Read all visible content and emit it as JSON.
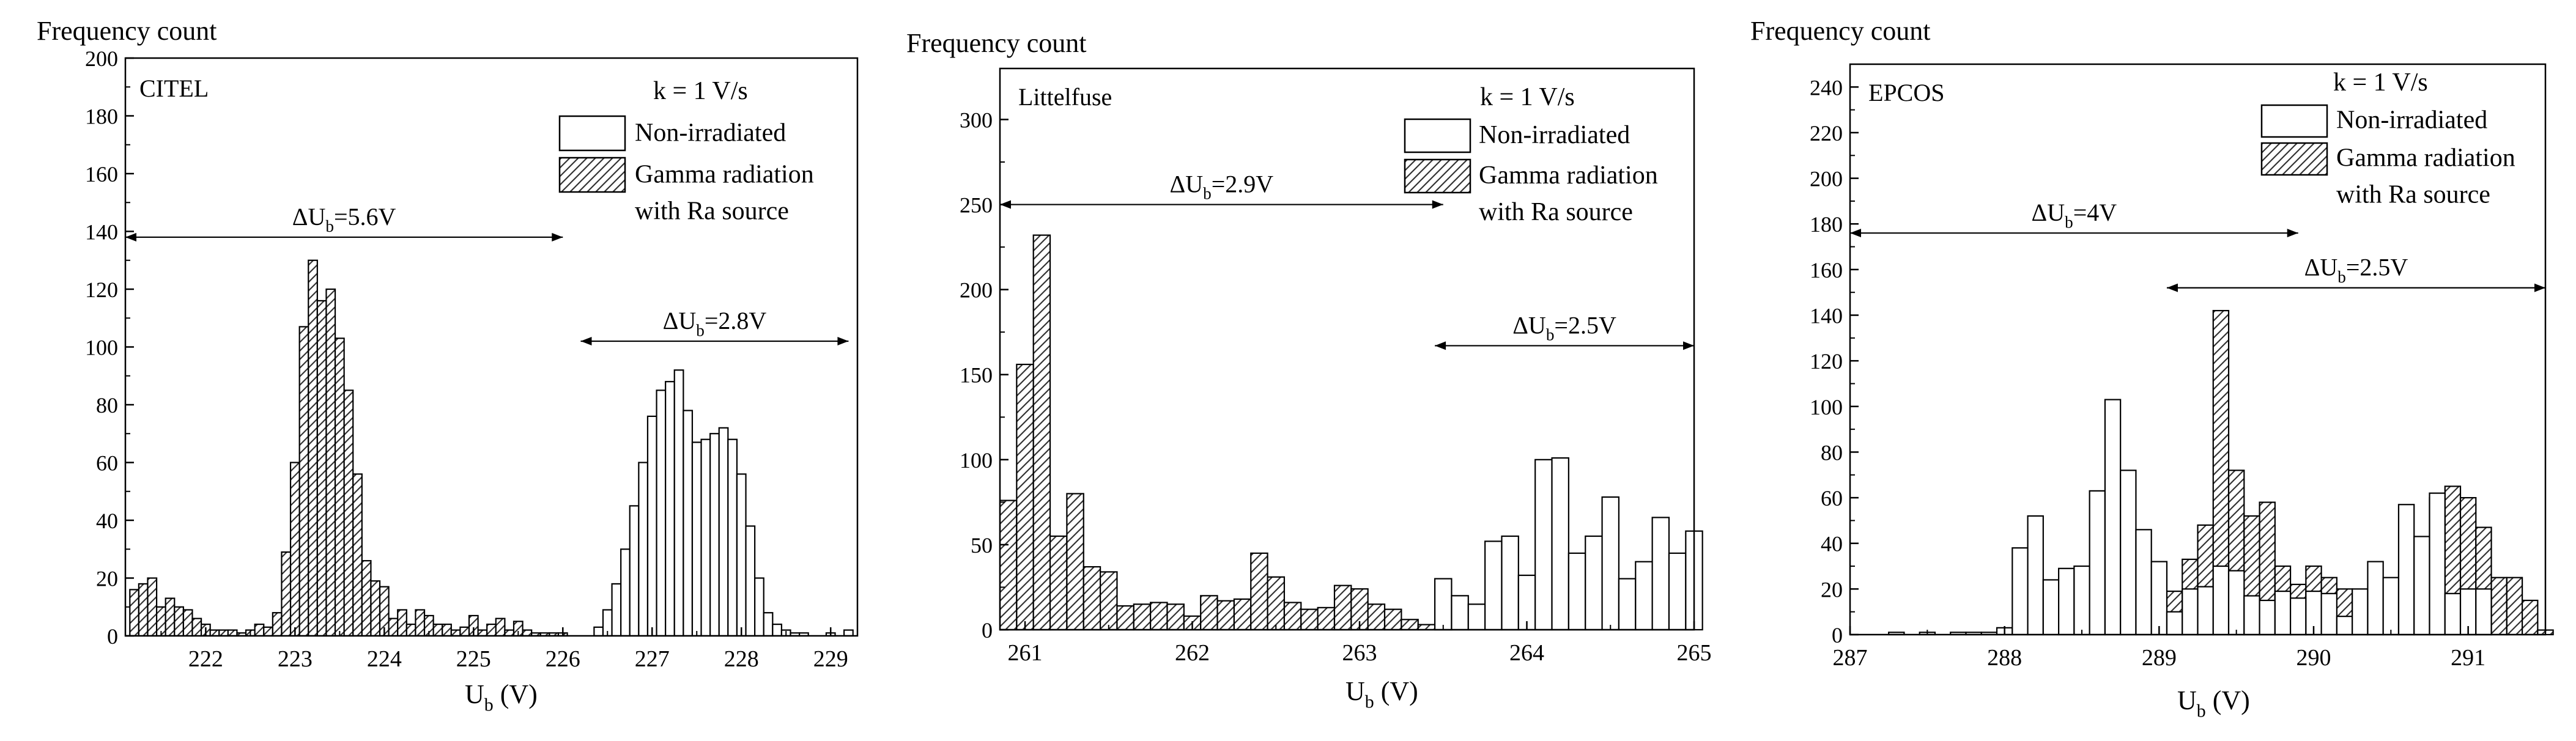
{
  "chart_data": [
    {
      "type": "bar",
      "panel_label": "CITEL",
      "ylabel": "Frequency count",
      "xlabel": "U",
      "xlabel_sub": "b",
      "xlabel_unit": "(V)",
      "xlim": [
        221.1,
        229.3
      ],
      "ylim": [
        0,
        200
      ],
      "xticks": [
        222,
        223,
        224,
        225,
        226,
        227,
        228,
        229
      ],
      "yticks": [
        0,
        20,
        40,
        60,
        80,
        100,
        120,
        140,
        160,
        180,
        200
      ],
      "bin_width": 0.1,
      "rate_label": "k = 1 V/s",
      "legend": [
        {
          "label": "Non-irradiated",
          "fill": "none"
        },
        {
          "label": "Gamma radiation",
          "label2": "with Ra source",
          "fill": "hatch"
        }
      ],
      "series": [
        {
          "name": "Non-irradiated",
          "fill": "none",
          "x": [
            226.4,
            226.5,
            226.6,
            226.7,
            226.8,
            226.9,
            227.0,
            227.1,
            227.2,
            227.3,
            227.4,
            227.5,
            227.6,
            227.7,
            227.8,
            227.9,
            228.0,
            228.1,
            228.2,
            228.3,
            228.4,
            228.5,
            228.6,
            228.7,
            228.8,
            228.9,
            229.0,
            229.1,
            229.2
          ],
          "values": [
            3,
            9,
            18,
            30,
            45,
            60,
            76,
            85,
            88,
            92,
            78,
            67,
            68,
            70,
            72,
            68,
            56,
            38,
            20,
            8,
            4,
            2,
            1,
            1,
            0,
            0,
            1,
            0,
            2
          ]
        },
        {
          "name": "Gamma radiation with Ra source",
          "fill": "hatch",
          "x": [
            221.2,
            221.3,
            221.4,
            221.5,
            221.6,
            221.7,
            221.8,
            221.9,
            222.0,
            222.1,
            222.2,
            222.3,
            222.4,
            222.5,
            222.6,
            222.7,
            222.8,
            222.9,
            223.0,
            223.1,
            223.2,
            223.3,
            223.4,
            223.5,
            223.6,
            223.7,
            223.8,
            223.9,
            224.0,
            224.1,
            224.2,
            224.3,
            224.4,
            224.5,
            224.6,
            224.7,
            224.8,
            224.9,
            225.0,
            225.1,
            225.2,
            225.3,
            225.4,
            225.5,
            225.6,
            225.7,
            225.8,
            225.9,
            226.0
          ],
          "values": [
            16,
            18,
            20,
            10,
            13,
            10,
            9,
            6,
            4,
            2,
            2,
            2,
            1,
            2,
            4,
            3,
            8,
            29,
            60,
            107,
            130,
            116,
            120,
            103,
            85,
            56,
            26,
            19,
            17,
            6,
            9,
            4,
            9,
            7,
            4,
            4,
            2,
            3,
            7,
            2,
            4,
            6,
            2,
            5,
            2,
            1,
            1,
            1,
            1
          ]
        }
      ],
      "annotations": [
        {
          "label": "ΔU",
          "sub": "b",
          "value": "=5.6V",
          "x_from": 221.1,
          "x_to": 226.0,
          "y": 138
        },
        {
          "label": "ΔU",
          "sub": "b",
          "value": "=2.8V",
          "x_from": 226.2,
          "x_to": 229.2,
          "y": 102
        }
      ]
    },
    {
      "type": "bar",
      "panel_label": "Littelfuse",
      "ylabel": "Frequency count",
      "xlabel": "U",
      "xlabel_sub": "b",
      "xlabel_unit": "(V)",
      "xlim": [
        260.85,
        265.0
      ],
      "ylim": [
        0,
        330
      ],
      "xticks": [
        261,
        262,
        263,
        264,
        265
      ],
      "yticks": [
        0,
        50,
        100,
        150,
        200,
        250,
        300
      ],
      "bin_width": 0.1,
      "rate_label": "k = 1 V/s",
      "legend": [
        {
          "label": "Non-irradiated",
          "fill": "none"
        },
        {
          "label": "Gamma radiation",
          "label2": "with Ra source",
          "fill": "hatch"
        }
      ],
      "series": [
        {
          "name": "Non-irradiated",
          "fill": "none",
          "x": [
            263.5,
            263.6,
            263.7,
            263.8,
            263.9,
            264.0,
            264.1,
            264.2,
            264.3,
            264.4,
            264.5,
            264.6,
            264.7,
            264.8,
            264.9,
            265.0
          ],
          "values": [
            30,
            20,
            15,
            52,
            55,
            32,
            100,
            101,
            45,
            55,
            78,
            30,
            40,
            66,
            45,
            58
          ]
        },
        {
          "name": "Gamma radiation with Ra source",
          "fill": "hatch",
          "x": [
            260.9,
            261.0,
            261.1,
            261.2,
            261.3,
            261.4,
            261.5,
            261.6,
            261.7,
            261.8,
            261.9,
            262.0,
            262.1,
            262.2,
            262.3,
            262.4,
            262.5,
            262.6,
            262.7,
            262.8,
            262.9,
            263.0,
            263.1,
            263.2,
            263.3,
            263.4,
            263.5
          ],
          "values": [
            76,
            156,
            232,
            55,
            80,
            37,
            34,
            14,
            15,
            16,
            15,
            8,
            20,
            17,
            18,
            45,
            31,
            16,
            12,
            13,
            26,
            24,
            15,
            12,
            6,
            3,
            4
          ]
        }
      ],
      "annotations": [
        {
          "label": "ΔU",
          "sub": "b",
          "value": "=2.9V",
          "x_from": 260.85,
          "x_to": 263.5,
          "y": 250
        },
        {
          "label": "ΔU",
          "sub": "b",
          "value": "=2.5V",
          "x_from": 263.45,
          "x_to": 265.0,
          "y": 167
        }
      ]
    },
    {
      "type": "bar",
      "panel_label": "EPCOS",
      "ylabel": "Frequency count",
      "xlabel": "U",
      "xlabel_sub": "b",
      "xlabel_unit": "(V)",
      "xlim": [
        287.0,
        291.5
      ],
      "ylim": [
        0,
        250
      ],
      "xticks": [
        287,
        288,
        289,
        290,
        291
      ],
      "yticks": [
        0,
        20,
        40,
        60,
        80,
        100,
        120,
        140,
        160,
        180,
        200,
        220,
        240
      ],
      "bin_width": 0.1,
      "rate_label": "k = 1 V/s",
      "legend": [
        {
          "label": "Non-irradiated",
          "fill": "none"
        },
        {
          "label": "Gamma radiation",
          "label2": "with Ra source",
          "fill": "hatch"
        }
      ],
      "series": [
        {
          "name": "Non-irradiated",
          "fill": "none",
          "x": [
            287.3,
            287.5,
            287.7,
            287.8,
            287.9,
            288.0,
            288.1,
            288.2,
            288.3,
            288.4,
            288.5,
            288.6,
            288.7,
            288.8,
            288.9,
            289.0,
            289.1,
            289.2,
            289.3,
            289.4,
            289.5,
            289.6,
            289.7,
            289.8,
            289.9,
            290.0,
            290.1,
            290.2,
            290.3,
            290.4,
            290.5,
            290.6,
            290.7,
            290.8,
            290.9,
            291.0,
            291.1
          ],
          "values": [
            1,
            1,
            1,
            1,
            1,
            3,
            38,
            52,
            24,
            29,
            30,
            63,
            103,
            72,
            46,
            32,
            10,
            20,
            21,
            30,
            28,
            17,
            15,
            19,
            16,
            19,
            18,
            8,
            20,
            32,
            25,
            57,
            43,
            62,
            18,
            20,
            20
          ]
        },
        {
          "name": "Gamma radiation with Ra source",
          "fill": "hatch",
          "x": [
            289.1,
            289.2,
            289.3,
            289.4,
            289.5,
            289.6,
            289.7,
            289.8,
            289.9,
            290.0,
            290.1,
            290.2,
            290.3,
            290.4,
            290.5,
            290.6,
            290.7,
            290.8,
            290.9,
            291.0,
            291.1,
            291.2,
            291.3,
            291.4,
            291.5
          ],
          "values": [
            19,
            33,
            48,
            142,
            72,
            52,
            58,
            30,
            22,
            30,
            25,
            20,
            19,
            10,
            14,
            28,
            38,
            60,
            65,
            60,
            47,
            25,
            25,
            15,
            2
          ]
        }
      ],
      "annotations": [
        {
          "label": "ΔU",
          "sub": "b",
          "value": "=4V",
          "x_from": 287.0,
          "x_to": 289.9,
          "y": 176
        },
        {
          "label": "ΔU",
          "sub": "b",
          "value": "=2.5V",
          "x_from": 289.05,
          "x_to": 291.5,
          "y": 152
        }
      ]
    }
  ]
}
